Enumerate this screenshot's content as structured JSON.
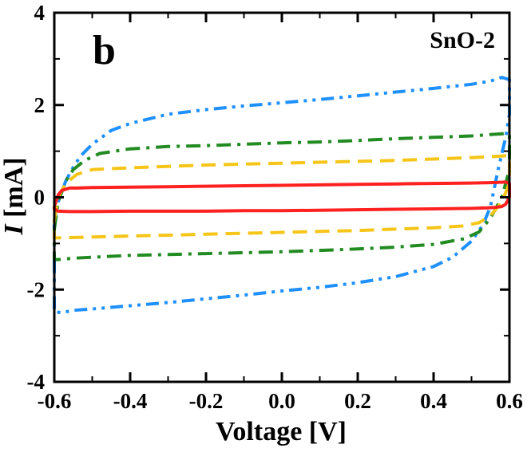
{
  "chart_data": {
    "type": "line",
    "panel_label": "b",
    "sample_label": "SnO-2",
    "xlabel": "Voltage [V]",
    "ylabel_italic": "I",
    "ylabel_rest": " [mA]",
    "xlim": [
      -0.6,
      0.6
    ],
    "ylim": [
      -4,
      4
    ],
    "x_ticks": [
      -0.6,
      -0.4,
      -0.2,
      0.0,
      0.2,
      0.4,
      0.6
    ],
    "x_tick_labels": [
      "-0.6",
      "-0.4",
      "-0.2",
      "0.0",
      "0.2",
      "0.4",
      "0.6"
    ],
    "y_ticks": [
      -4,
      -2,
      0,
      2,
      4
    ],
    "y_tick_labels": [
      "-4",
      "-2",
      "0",
      "2",
      "4"
    ],
    "grid": false,
    "series": [
      {
        "color": "#1e90ff",
        "dash": "dash-dot-dot",
        "x": [
          -0.6,
          -0.59,
          -0.57,
          -0.55,
          -0.53,
          -0.5,
          -0.45,
          -0.4,
          -0.3,
          -0.2,
          -0.1,
          0.0,
          0.1,
          0.2,
          0.3,
          0.4,
          0.5,
          0.55,
          0.58,
          0.6,
          0.6,
          0.59,
          0.57,
          0.55,
          0.53,
          0.5,
          0.45,
          0.4,
          0.3,
          0.2,
          0.1,
          0.0,
          -0.1,
          -0.2,
          -0.3,
          -0.4,
          -0.5,
          -0.55,
          -0.58,
          -0.6,
          -0.6
        ],
        "y": [
          -0.5,
          -0.1,
          0.35,
          0.65,
          0.9,
          1.15,
          1.45,
          1.6,
          1.8,
          1.9,
          1.98,
          2.05,
          2.12,
          2.2,
          2.28,
          2.36,
          2.45,
          2.52,
          2.6,
          2.55,
          1.8,
          1.3,
          0.6,
          -0.2,
          -0.6,
          -0.95,
          -1.3,
          -1.5,
          -1.72,
          -1.85,
          -1.95,
          -2.03,
          -2.12,
          -2.2,
          -2.28,
          -2.35,
          -2.42,
          -2.45,
          -2.5,
          -2.48,
          -0.5
        ]
      },
      {
        "color": "#228b22",
        "dash": "dash-dot",
        "x": [
          -0.6,
          -0.59,
          -0.57,
          -0.55,
          -0.52,
          -0.48,
          -0.4,
          -0.3,
          -0.2,
          -0.1,
          0.0,
          0.1,
          0.2,
          0.3,
          0.4,
          0.5,
          0.55,
          0.59,
          0.6,
          0.6,
          0.58,
          0.55,
          0.52,
          0.48,
          0.4,
          0.3,
          0.2,
          0.1,
          0.0,
          -0.1,
          -0.2,
          -0.3,
          -0.4,
          -0.5,
          -0.55,
          -0.59,
          -0.6,
          -0.6
        ],
        "y": [
          -0.7,
          -0.1,
          0.35,
          0.6,
          0.8,
          0.95,
          1.05,
          1.1,
          1.12,
          1.15,
          1.18,
          1.2,
          1.23,
          1.27,
          1.3,
          1.33,
          1.36,
          1.38,
          1.35,
          0.6,
          0.0,
          -0.45,
          -0.75,
          -0.9,
          -1.02,
          -1.08,
          -1.12,
          -1.15,
          -1.18,
          -1.2,
          -1.22,
          -1.24,
          -1.26,
          -1.3,
          -1.32,
          -1.35,
          -1.35,
          -0.7
        ]
      },
      {
        "color": "#f5c518",
        "dash": "dash",
        "x": [
          -0.6,
          -0.59,
          -0.57,
          -0.54,
          -0.5,
          -0.45,
          -0.4,
          -0.3,
          -0.2,
          -0.1,
          0.0,
          0.1,
          0.2,
          0.3,
          0.4,
          0.5,
          0.55,
          0.59,
          0.6,
          0.6,
          0.58,
          0.55,
          0.52,
          0.48,
          0.4,
          0.3,
          0.2,
          0.1,
          0.0,
          -0.1,
          -0.2,
          -0.3,
          -0.4,
          -0.5,
          -0.55,
          -0.59,
          -0.6,
          -0.6
        ],
        "y": [
          -0.5,
          0.0,
          0.3,
          0.5,
          0.6,
          0.62,
          0.64,
          0.67,
          0.7,
          0.72,
          0.74,
          0.76,
          0.78,
          0.8,
          0.83,
          0.86,
          0.88,
          0.9,
          0.88,
          0.3,
          -0.1,
          -0.4,
          -0.55,
          -0.62,
          -0.66,
          -0.69,
          -0.72,
          -0.74,
          -0.76,
          -0.78,
          -0.8,
          -0.82,
          -0.84,
          -0.86,
          -0.87,
          -0.88,
          -0.88,
          -0.5
        ]
      },
      {
        "color": "#ff2020",
        "dash": "solid",
        "x": [
          -0.6,
          -0.59,
          -0.58,
          -0.56,
          -0.54,
          -0.5,
          -0.4,
          -0.3,
          -0.2,
          -0.1,
          0.0,
          0.1,
          0.2,
          0.3,
          0.4,
          0.5,
          0.56,
          0.59,
          0.6,
          0.6,
          0.59,
          0.58,
          0.56,
          0.54,
          0.5,
          0.4,
          0.3,
          0.2,
          0.1,
          0.0,
          -0.1,
          -0.2,
          -0.3,
          -0.4,
          -0.5,
          -0.56,
          -0.59,
          -0.6,
          -0.6
        ],
        "y": [
          -0.2,
          0.05,
          0.15,
          0.2,
          0.2,
          0.21,
          0.22,
          0.23,
          0.24,
          0.25,
          0.26,
          0.27,
          0.28,
          0.29,
          0.3,
          0.31,
          0.32,
          0.33,
          0.3,
          0.0,
          -0.15,
          -0.2,
          -0.22,
          -0.23,
          -0.24,
          -0.25,
          -0.26,
          -0.27,
          -0.28,
          -0.29,
          -0.29,
          -0.3,
          -0.3,
          -0.3,
          -0.31,
          -0.31,
          -0.3,
          -0.25,
          -0.2
        ]
      }
    ]
  }
}
